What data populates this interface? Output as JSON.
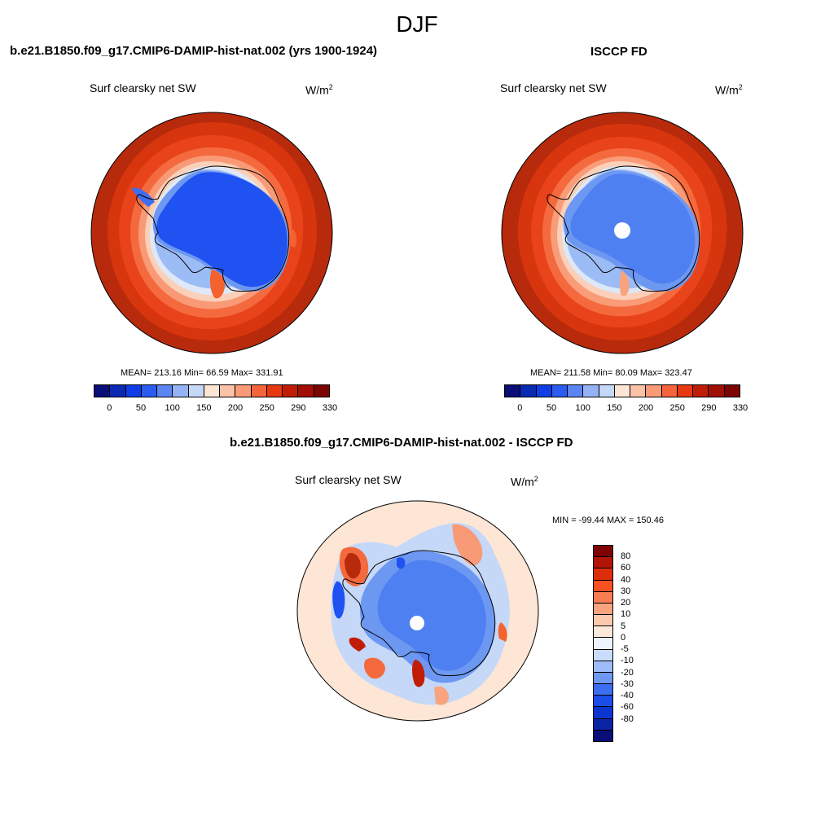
{
  "season": "DJF",
  "panel1": {
    "title": "b.e21.B1850.f09_g17.CMIP6-DAMIP-hist-nat.002 (yrs 1900-1924)",
    "variable": "Surf clearsky net SW",
    "units_base": "W/m",
    "units_exp": "2",
    "stats": "MEAN= 213.16  Min=  66.59  Max= 331.91"
  },
  "panel2": {
    "title": "ISCCP FD",
    "variable": "Surf clearsky net SW",
    "units_base": "W/m",
    "units_exp": "2",
    "stats": "MEAN= 211.58  Min=  80.09  Max= 323.47"
  },
  "panel3": {
    "title": "b.e21.B1850.f09_g17.CMIP6-DAMIP-hist-nat.002 - ISCCP FD",
    "variable": "Surf clearsky net SW",
    "units_base": "W/m",
    "units_exp": "2",
    "minmax": "MIN = -99.44 MAX = 150.46"
  },
  "colorbar_abs": {
    "colors": [
      "#0a0e78",
      "#0a2ab4",
      "#0f3ee6",
      "#2a5cf0",
      "#5b85f2",
      "#95b2f4",
      "#c6d8f8",
      "#fde5d5",
      "#fcc2a8",
      "#fb9a76",
      "#f6643c",
      "#e83812",
      "#c11d06",
      "#a00e06",
      "#7e0404"
    ],
    "labels": [
      "0",
      "50",
      "100",
      "150",
      "200",
      "250",
      "290",
      "330"
    ]
  },
  "colorbar_diff": {
    "colors": [
      "#7e0404",
      "#b21406",
      "#dd2e0c",
      "#f55122",
      "#f77e52",
      "#f9a47e",
      "#fcc9ae",
      "#fde9dc",
      "#eef4fd",
      "#c9dcfb",
      "#9dbcf8",
      "#6f98f3",
      "#3e6ef0",
      "#1b4de8",
      "#0a36cf",
      "#0a24a4",
      "#0a0e78"
    ],
    "labels": [
      "80",
      "60",
      "40",
      "30",
      "20",
      "10",
      "5",
      "0",
      "-5",
      "-10",
      "-20",
      "-30",
      "-40",
      "-60",
      "-80"
    ]
  }
}
